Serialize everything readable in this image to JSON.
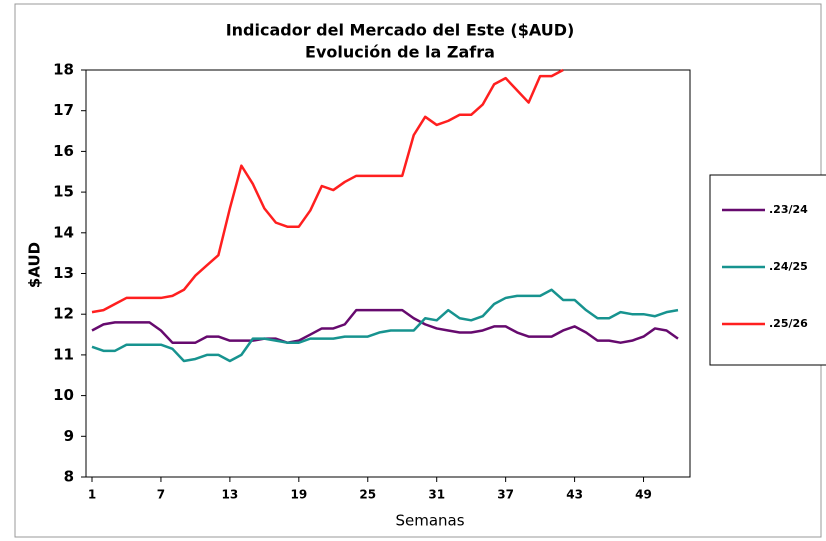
{
  "chart_data": {
    "type": "line",
    "title": "Indicador del Mercado del Este ($AUD)",
    "subtitle": "Evolución de la Zafra",
    "y_label": "$AUD",
    "x_label": "Semanas",
    "x": [
      1,
      2,
      3,
      4,
      5,
      6,
      7,
      8,
      9,
      10,
      11,
      12,
      13,
      14,
      15,
      16,
      17,
      18,
      19,
      20,
      21,
      22,
      23,
      24,
      25,
      26,
      27,
      28,
      29,
      30,
      31,
      32,
      33,
      34,
      35,
      36,
      37,
      38,
      39,
      40,
      41,
      42,
      43,
      44,
      45,
      46,
      47,
      48,
      49,
      50,
      51,
      52
    ],
    "xlim": [
      1,
      52
    ],
    "xticks": [
      1,
      7,
      13,
      19,
      25,
      31,
      37,
      43,
      49
    ],
    "ylim": [
      8,
      18
    ],
    "yticks": [
      8,
      9,
      10,
      11,
      12,
      13,
      14,
      15,
      16,
      17,
      18
    ],
    "grid": false,
    "legend": "right",
    "series": [
      {
        "name": ".23/24",
        "color": "#660a6e",
        "values": [
          11.6,
          11.75,
          11.8,
          11.8,
          11.8,
          11.8,
          11.6,
          11.3,
          11.3,
          11.3,
          11.45,
          11.45,
          11.35,
          11.35,
          11.35,
          11.4,
          11.4,
          11.3,
          11.35,
          11.5,
          11.65,
          11.65,
          11.75,
          12.1,
          12.1,
          12.1,
          12.1,
          12.1,
          11.9,
          11.75,
          11.65,
          11.6,
          11.55,
          11.55,
          11.6,
          11.7,
          11.7,
          11.55,
          11.45,
          11.45,
          11.45,
          11.6,
          11.7,
          11.55,
          11.35,
          11.35,
          11.3,
          11.35,
          11.45,
          11.65,
          11.6,
          11.4
        ]
      },
      {
        "name": ".24/25",
        "color": "#17938f",
        "values": [
          11.2,
          11.1,
          11.1,
          11.25,
          11.25,
          11.25,
          11.25,
          11.15,
          10.85,
          10.9,
          11.0,
          11.0,
          10.85,
          11.0,
          11.4,
          11.4,
          11.35,
          11.3,
          11.3,
          11.4,
          11.4,
          11.4,
          11.45,
          11.45,
          11.45,
          11.55,
          11.6,
          11.6,
          11.6,
          11.9,
          11.85,
          12.1,
          11.9,
          11.85,
          11.95,
          12.25,
          12.4,
          12.45,
          12.45,
          12.45,
          12.6,
          12.35,
          12.35,
          12.1,
          11.9,
          11.9,
          12.05,
          12.0,
          12.0,
          11.95,
          12.05,
          12.1
        ]
      },
      {
        "name": ".25/26",
        "color": "#ff1f1f",
        "values": [
          12.05,
          12.1,
          12.25,
          12.4,
          12.4,
          12.4,
          12.4,
          12.45,
          12.6,
          12.95,
          13.2,
          13.45,
          14.6,
          15.65,
          15.2,
          14.6,
          14.25,
          14.15,
          14.15,
          14.55,
          15.15,
          15.05,
          15.25,
          15.4,
          15.4,
          15.4,
          15.4,
          15.4,
          16.4,
          16.85,
          16.65,
          16.75,
          16.9,
          16.9,
          17.15,
          17.65,
          17.8,
          17.5,
          17.2,
          17.85,
          17.85,
          18.0,
          null,
          null,
          null,
          null,
          null,
          null,
          null,
          null,
          null,
          null
        ]
      }
    ]
  }
}
